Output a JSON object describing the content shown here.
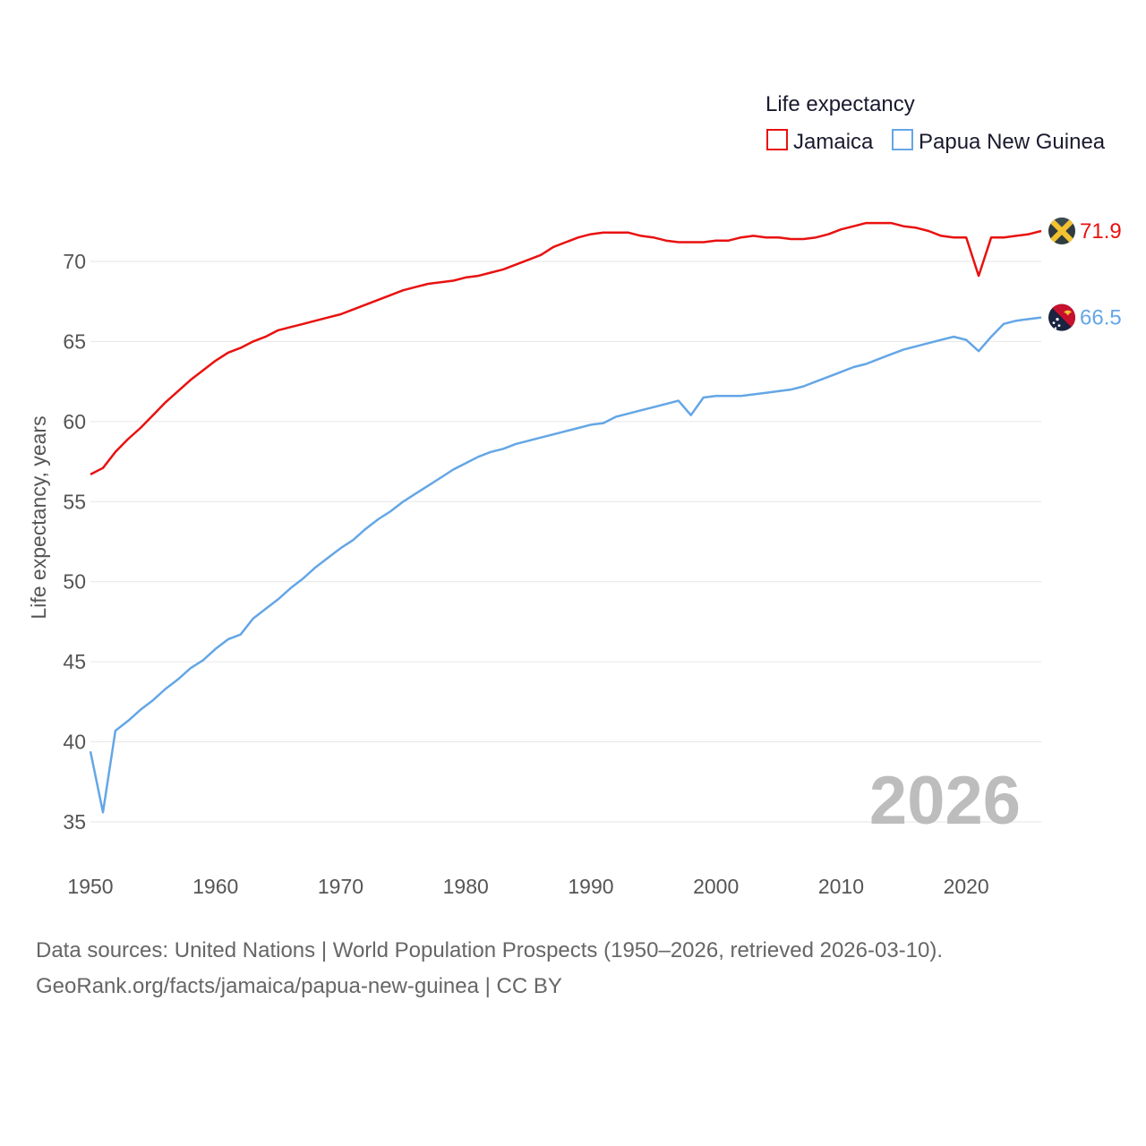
{
  "chart_data": {
    "type": "line",
    "legend_title": "Life expectancy",
    "ylabel": "Life expectancy, years",
    "xlabel": "",
    "xlim": [
      1950,
      2026
    ],
    "ylim": [
      33,
      75
    ],
    "x_ticks": [
      "1950",
      "1960",
      "1970",
      "1980",
      "1990",
      "2000",
      "2010",
      "2020"
    ],
    "y_ticks": [
      "35",
      "40",
      "45",
      "50",
      "55",
      "60",
      "65",
      "70"
    ],
    "year_watermark": "2026",
    "grid": true,
    "legend_position": "top-right",
    "x": [
      1950,
      1951,
      1952,
      1953,
      1954,
      1955,
      1956,
      1957,
      1958,
      1959,
      1960,
      1961,
      1962,
      1963,
      1964,
      1965,
      1966,
      1967,
      1968,
      1969,
      1970,
      1971,
      1972,
      1973,
      1974,
      1975,
      1976,
      1977,
      1978,
      1979,
      1980,
      1981,
      1982,
      1983,
      1984,
      1985,
      1986,
      1987,
      1988,
      1989,
      1990,
      1991,
      1992,
      1993,
      1994,
      1995,
      1996,
      1997,
      1998,
      1999,
      2000,
      2001,
      2002,
      2003,
      2004,
      2005,
      2006,
      2007,
      2008,
      2009,
      2010,
      2011,
      2012,
      2013,
      2014,
      2015,
      2016,
      2017,
      2018,
      2019,
      2020,
      2021,
      2022,
      2023,
      2024,
      2025,
      2026
    ],
    "series": [
      {
        "name": "Jamaica",
        "color": "#e8110f",
        "end_label": "71.9",
        "values": [
          56.7,
          57.1,
          58.1,
          58.9,
          59.6,
          60.4,
          61.2,
          61.9,
          62.6,
          63.2,
          63.8,
          64.3,
          64.6,
          65.0,
          65.3,
          65.7,
          65.9,
          66.1,
          66.3,
          66.5,
          66.7,
          67.0,
          67.3,
          67.6,
          67.9,
          68.2,
          68.4,
          68.6,
          68.7,
          68.8,
          69.0,
          69.1,
          69.3,
          69.5,
          69.8,
          70.1,
          70.4,
          70.9,
          71.2,
          71.5,
          71.7,
          71.8,
          71.8,
          71.8,
          71.6,
          71.5,
          71.3,
          71.2,
          71.2,
          71.2,
          71.3,
          71.3,
          71.5,
          71.6,
          71.5,
          71.5,
          71.4,
          71.4,
          71.5,
          71.7,
          72.0,
          72.2,
          72.4,
          72.4,
          72.4,
          72.2,
          72.1,
          71.9,
          71.6,
          71.5,
          71.5,
          69.1,
          71.5,
          71.5,
          71.6,
          71.7,
          71.9
        ]
      },
      {
        "name": "Papua New Guinea",
        "color": "#64a6e6",
        "end_label": "66.5",
        "values": [
          39.4,
          35.6,
          40.7,
          41.3,
          42.0,
          42.6,
          43.3,
          43.9,
          44.6,
          45.1,
          45.8,
          46.4,
          46.7,
          47.7,
          48.3,
          48.9,
          49.6,
          50.2,
          50.9,
          51.5,
          52.1,
          52.6,
          53.3,
          53.9,
          54.4,
          55.0,
          55.5,
          56.0,
          56.5,
          57.0,
          57.4,
          57.8,
          58.1,
          58.3,
          58.6,
          58.8,
          59.0,
          59.2,
          59.4,
          59.6,
          59.8,
          59.9,
          60.3,
          60.5,
          60.7,
          60.9,
          61.1,
          61.3,
          60.4,
          61.5,
          61.6,
          61.6,
          61.6,
          61.7,
          61.8,
          61.9,
          62.0,
          62.2,
          62.5,
          62.8,
          63.1,
          63.4,
          63.6,
          63.9,
          64.2,
          64.5,
          64.7,
          64.9,
          65.1,
          65.3,
          65.1,
          64.4,
          65.3,
          66.1,
          66.3,
          66.4,
          66.5
        ]
      }
    ]
  },
  "source_line1": "Data sources: United Nations | World Population Prospects (1950–2026, retrieved 2026-03-10).",
  "source_line2": "GeoRank.org/facts/jamaica/papua-new-guinea | CC BY",
  "flags": {
    "jamaica": {
      "icon": "jamaica-flag-icon",
      "green": "#2f3b3f",
      "gold": "#f2c230"
    },
    "png": {
      "icon": "papua-new-guinea-flag-icon",
      "red": "#c8102e",
      "black": "#1a2340",
      "gold": "#f2c230"
    }
  }
}
